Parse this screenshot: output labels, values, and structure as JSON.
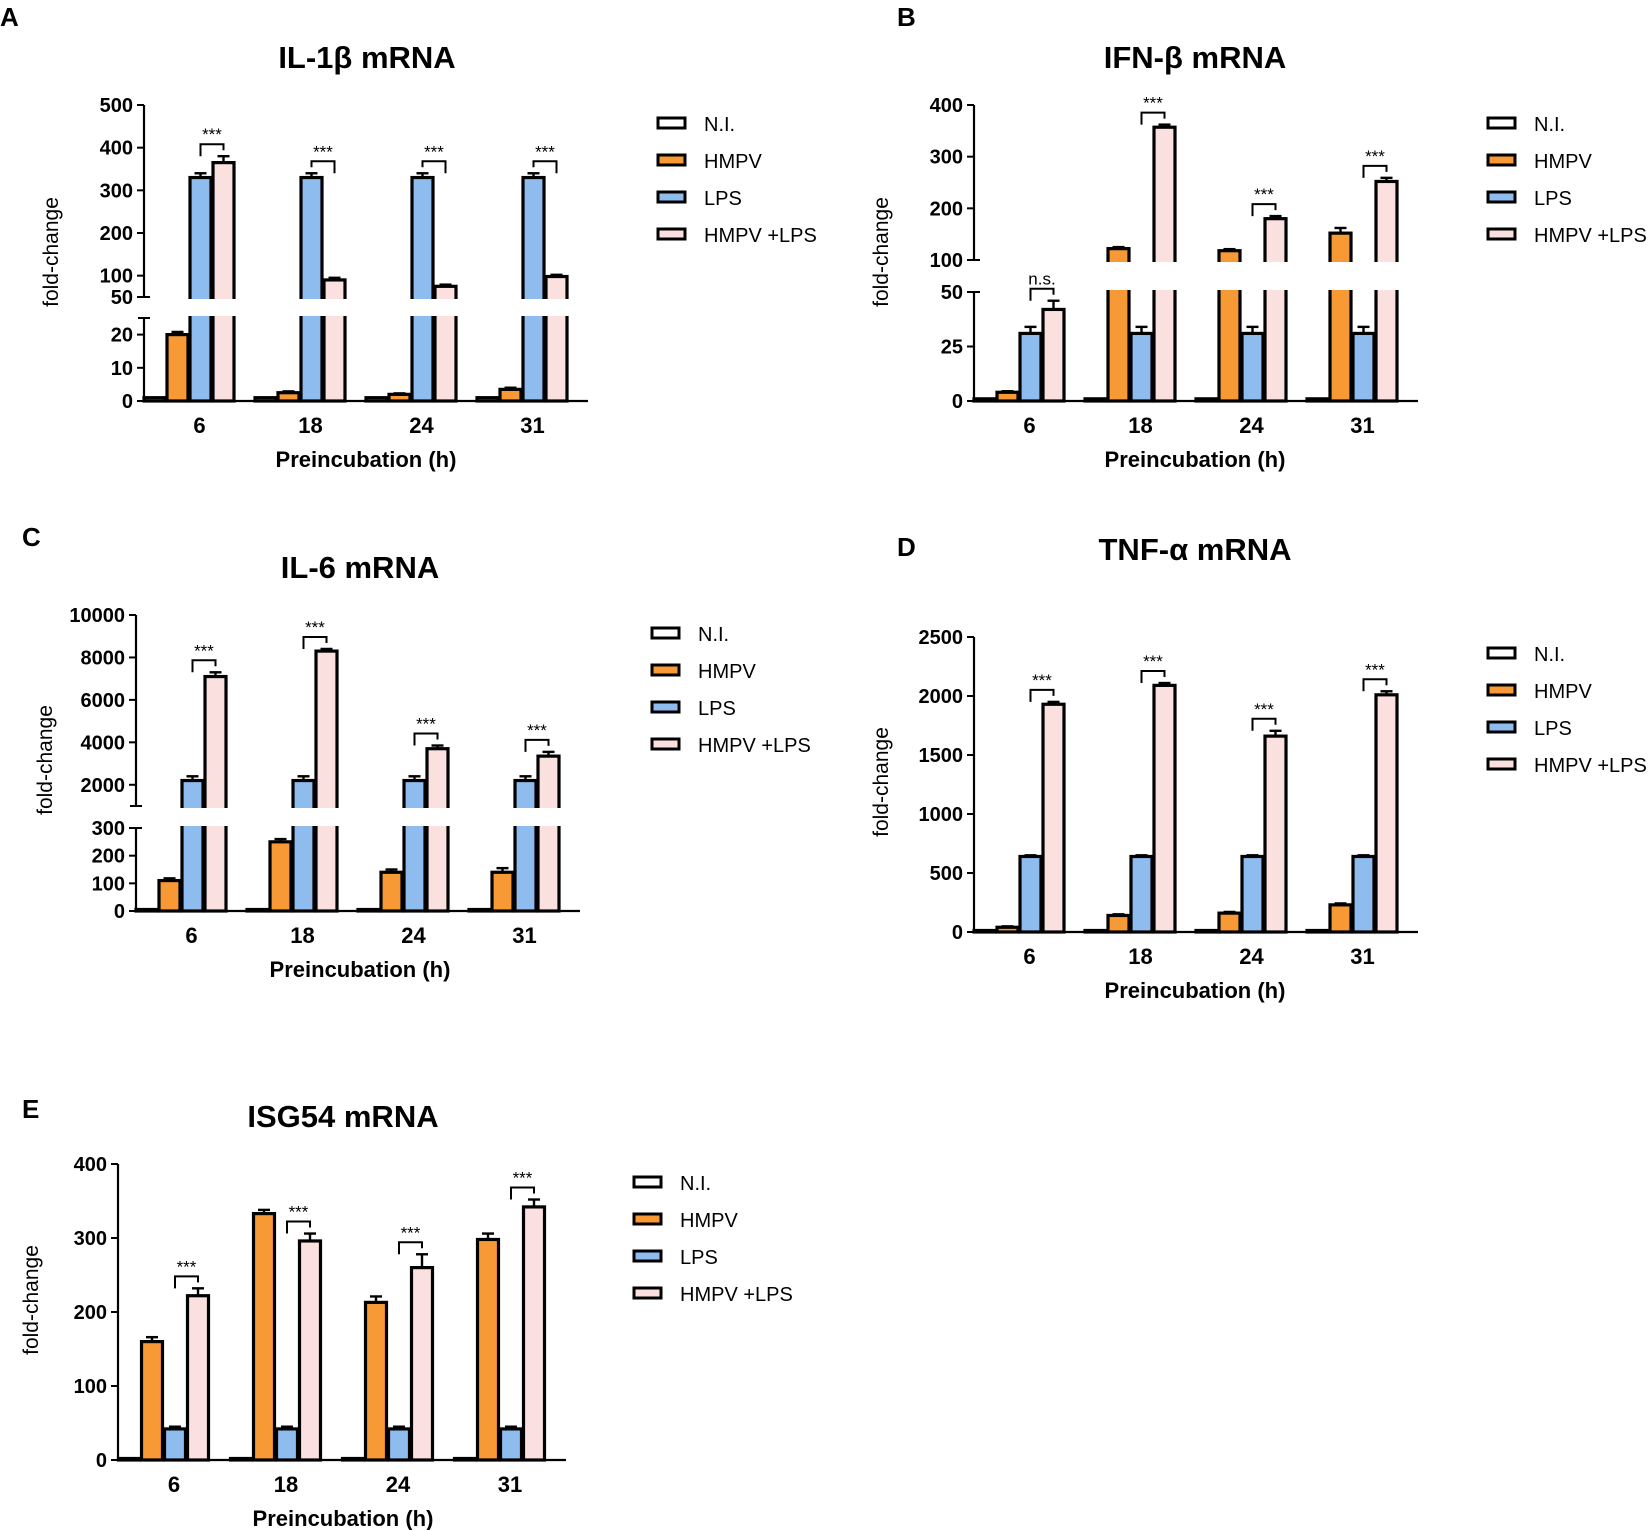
{
  "series_names": [
    "N.I.",
    "HMPV",
    "LPS",
    "HMPV +LPS"
  ],
  "colors": {
    "N.I.": "#ffffff",
    "HMPV": "#f79a36",
    "LPS": "#8fbcef",
    "HMPV +LPS": "#fbe0e0",
    "stroke": "#000000"
  },
  "chart_data": [
    {
      "panel": "A",
      "type": "bar",
      "title": "IL-1β mRNA",
      "xlabel": "Preincubation (h)",
      "ylabel": "fold-change",
      "categories": [
        "6",
        "18",
        "24",
        "31"
      ],
      "axis_break": {
        "lower": [
          0,
          25
        ],
        "upper": [
          50,
          500
        ]
      },
      "lower_ticks": [
        "0",
        "10",
        "20"
      ],
      "upper_ticks": [
        "50",
        "100",
        "200",
        "300",
        "400",
        "500"
      ],
      "series": [
        {
          "name": "N.I.",
          "values": [
            1,
            1,
            1,
            1
          ],
          "errors": [
            0,
            0,
            0,
            0
          ]
        },
        {
          "name": "HMPV",
          "values": [
            20,
            2.5,
            2,
            3.5
          ],
          "errors": [
            0.8,
            0.4,
            0.3,
            0.5
          ]
        },
        {
          "name": "LPS",
          "values": [
            330,
            330,
            330,
            330
          ],
          "errors": [
            10,
            10,
            10,
            10
          ]
        },
        {
          "name": "HMPV +LPS",
          "values": [
            365,
            90,
            75,
            98
          ],
          "errors": [
            15,
            5,
            4,
            4
          ]
        }
      ],
      "significance": [
        {
          "category": "6",
          "label": "***"
        },
        {
          "category": "18",
          "label": "***"
        },
        {
          "category": "24",
          "label": "***"
        },
        {
          "category": "31",
          "label": "***"
        }
      ],
      "legend": [
        "N.I.",
        "HMPV",
        "LPS",
        "HMPV +LPS"
      ]
    },
    {
      "panel": "B",
      "type": "bar",
      "title": "IFN-β mRNA",
      "xlabel": "Preincubation (h)",
      "ylabel": "fold-change",
      "categories": [
        "6",
        "18",
        "24",
        "31"
      ],
      "axis_break": {
        "lower": [
          0,
          50
        ],
        "upper": [
          100,
          400
        ]
      },
      "lower_ticks": [
        "0",
        "25",
        "50"
      ],
      "upper_ticks": [
        "100",
        "200",
        "300",
        "400"
      ],
      "series": [
        {
          "name": "N.I.",
          "values": [
            1,
            1,
            1,
            1
          ],
          "errors": [
            0,
            0,
            0,
            0
          ]
        },
        {
          "name": "HMPV",
          "values": [
            4,
            122,
            118,
            152
          ],
          "errors": [
            0.5,
            3,
            3,
            10
          ]
        },
        {
          "name": "LPS",
          "values": [
            31,
            31,
            31,
            31
          ],
          "errors": [
            3,
            3,
            3,
            3
          ]
        },
        {
          "name": "HMPV +LPS",
          "values": [
            42,
            357,
            180,
            252
          ],
          "errors": [
            4,
            5,
            5,
            7
          ]
        }
      ],
      "significance": [
        {
          "category": "6",
          "label": "n.s."
        },
        {
          "category": "18",
          "label": "***"
        },
        {
          "category": "24",
          "label": "***"
        },
        {
          "category": "31",
          "label": "***"
        }
      ],
      "legend": [
        "N.I.",
        "HMPV",
        "LPS",
        "HMPV +LPS"
      ]
    },
    {
      "panel": "C",
      "type": "bar",
      "title": "IL-6 mRNA",
      "xlabel": "Preincubation (h)",
      "ylabel": "fold-change",
      "categories": [
        "6",
        "18",
        "24",
        "31"
      ],
      "axis_break": {
        "lower": [
          0,
          300
        ],
        "upper": [
          1000,
          10000
        ]
      },
      "lower_ticks": [
        "0",
        "100",
        "200",
        "300"
      ],
      "upper_ticks": [
        "2000",
        "4000",
        "6000",
        "8000",
        "10000"
      ],
      "series": [
        {
          "name": "N.I.",
          "values": [
            1,
            1,
            1,
            1
          ],
          "errors": [
            0,
            0,
            0,
            0
          ]
        },
        {
          "name": "HMPV",
          "values": [
            110,
            250,
            140,
            140
          ],
          "errors": [
            8,
            10,
            10,
            15
          ]
        },
        {
          "name": "LPS",
          "values": [
            2200,
            2200,
            2200,
            2200
          ],
          "errors": [
            200,
            200,
            200,
            200
          ]
        },
        {
          "name": "HMPV +LPS",
          "values": [
            7100,
            8300,
            3700,
            3350
          ],
          "errors": [
            200,
            100,
            150,
            200
          ]
        }
      ],
      "significance": [
        {
          "category": "6",
          "label": "***"
        },
        {
          "category": "18",
          "label": "***"
        },
        {
          "category": "24",
          "label": "***"
        },
        {
          "category": "31",
          "label": "***"
        }
      ],
      "legend": [
        "N.I.",
        "HMPV",
        "LPS",
        "HMPV +LPS"
      ]
    },
    {
      "panel": "D",
      "type": "bar",
      "title": "TNF-α mRNA",
      "xlabel": "Preincubation (h)",
      "ylabel": "fold-change",
      "categories": [
        "6",
        "18",
        "24",
        "31"
      ],
      "ylim": [
        0,
        2500
      ],
      "ticks": [
        "0",
        "500",
        "1000",
        "1500",
        "2000",
        "2500"
      ],
      "series": [
        {
          "name": "N.I.",
          "values": [
            1,
            1,
            1,
            1
          ],
          "errors": [
            0,
            0,
            0,
            0
          ]
        },
        {
          "name": "HMPV",
          "values": [
            40,
            140,
            160,
            230
          ],
          "errors": [
            8,
            10,
            10,
            12
          ]
        },
        {
          "name": "LPS",
          "values": [
            640,
            640,
            640,
            640
          ],
          "errors": [
            10,
            10,
            10,
            10
          ]
        },
        {
          "name": "HMPV +LPS",
          "values": [
            1930,
            2090,
            1660,
            2010
          ],
          "errors": [
            20,
            20,
            45,
            30
          ]
        }
      ],
      "significance": [
        {
          "category": "6",
          "label": "***"
        },
        {
          "category": "18",
          "label": "***"
        },
        {
          "category": "24",
          "label": "***"
        },
        {
          "category": "31",
          "label": "***"
        }
      ],
      "legend": [
        "N.I.",
        "HMPV",
        "LPS",
        "HMPV +LPS"
      ]
    },
    {
      "panel": "E",
      "type": "bar",
      "title": "ISG54 mRNA",
      "xlabel": "Preincubation (h)",
      "ylabel": "fold-change",
      "categories": [
        "6",
        "18",
        "24",
        "31"
      ],
      "ylim": [
        0,
        400
      ],
      "ticks": [
        "0",
        "100",
        "200",
        "300",
        "400"
      ],
      "series": [
        {
          "name": "N.I.",
          "values": [
            1,
            1,
            1,
            1
          ],
          "errors": [
            0,
            0,
            0,
            0
          ]
        },
        {
          "name": "HMPV",
          "values": [
            160,
            333,
            213,
            298
          ],
          "errors": [
            6,
            5,
            8,
            8
          ]
        },
        {
          "name": "LPS",
          "values": [
            42,
            42,
            42,
            42
          ],
          "errors": [
            3,
            3,
            3,
            3
          ]
        },
        {
          "name": "HMPV +LPS",
          "values": [
            222,
            296,
            260,
            342
          ],
          "errors": [
            10,
            10,
            18,
            10
          ]
        }
      ],
      "significance": [
        {
          "category": "6",
          "label": "***"
        },
        {
          "category": "18",
          "label": "***"
        },
        {
          "category": "24",
          "label": "***"
        },
        {
          "category": "31",
          "label": "***"
        }
      ],
      "legend": [
        "N.I.",
        "HMPV",
        "LPS",
        "HMPV +LPS"
      ]
    }
  ]
}
